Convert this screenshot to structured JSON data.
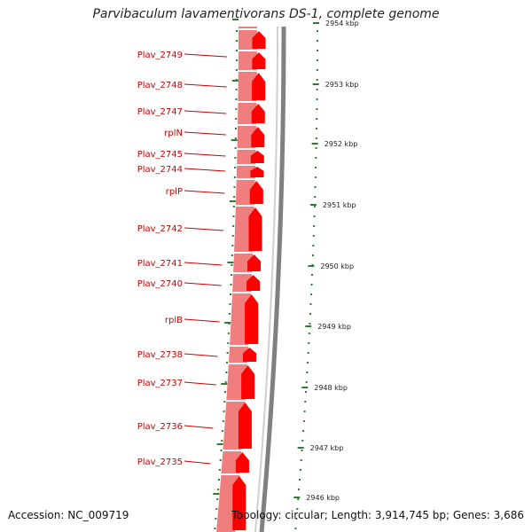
{
  "title": "Parvibaculum lavamentivorans DS-1, complete genome",
  "accession_text": "Accession: NC_009719",
  "summary_text": "Topology: circular; Length: 3,914,745 bp; Genes: 3,686",
  "colors": {
    "gene_forward": "#ff0000",
    "gene_track_light": "#ee7070",
    "backbone": "#808080",
    "label": "#cc0000",
    "tick": "#2e7d32"
  },
  "genes": [
    {
      "name": "Plav_2749"
    },
    {
      "name": "Plav_2748"
    },
    {
      "name": "Plav_2747"
    },
    {
      "name": "rplN"
    },
    {
      "name": "Plav_2745"
    },
    {
      "name": "Plav_2744"
    },
    {
      "name": "rplP"
    },
    {
      "name": "Plav_2742"
    },
    {
      "name": "Plav_2741"
    },
    {
      "name": "Plav_2740"
    },
    {
      "name": "rplB"
    },
    {
      "name": "Plav_2738"
    },
    {
      "name": "Plav_2737"
    },
    {
      "name": "Plav_2736"
    },
    {
      "name": "Plav_2735"
    }
  ],
  "scale_labels": [
    {
      "text": "2954 kbp"
    },
    {
      "text": "2953 kbp"
    },
    {
      "text": "2952 kbp"
    },
    {
      "text": "2951 kbp"
    },
    {
      "text": "2950 kbp"
    },
    {
      "text": "2949 kbp"
    },
    {
      "text": "2948 kbp"
    },
    {
      "text": "2947 kbp"
    },
    {
      "text": "2946 kbp"
    }
  ]
}
